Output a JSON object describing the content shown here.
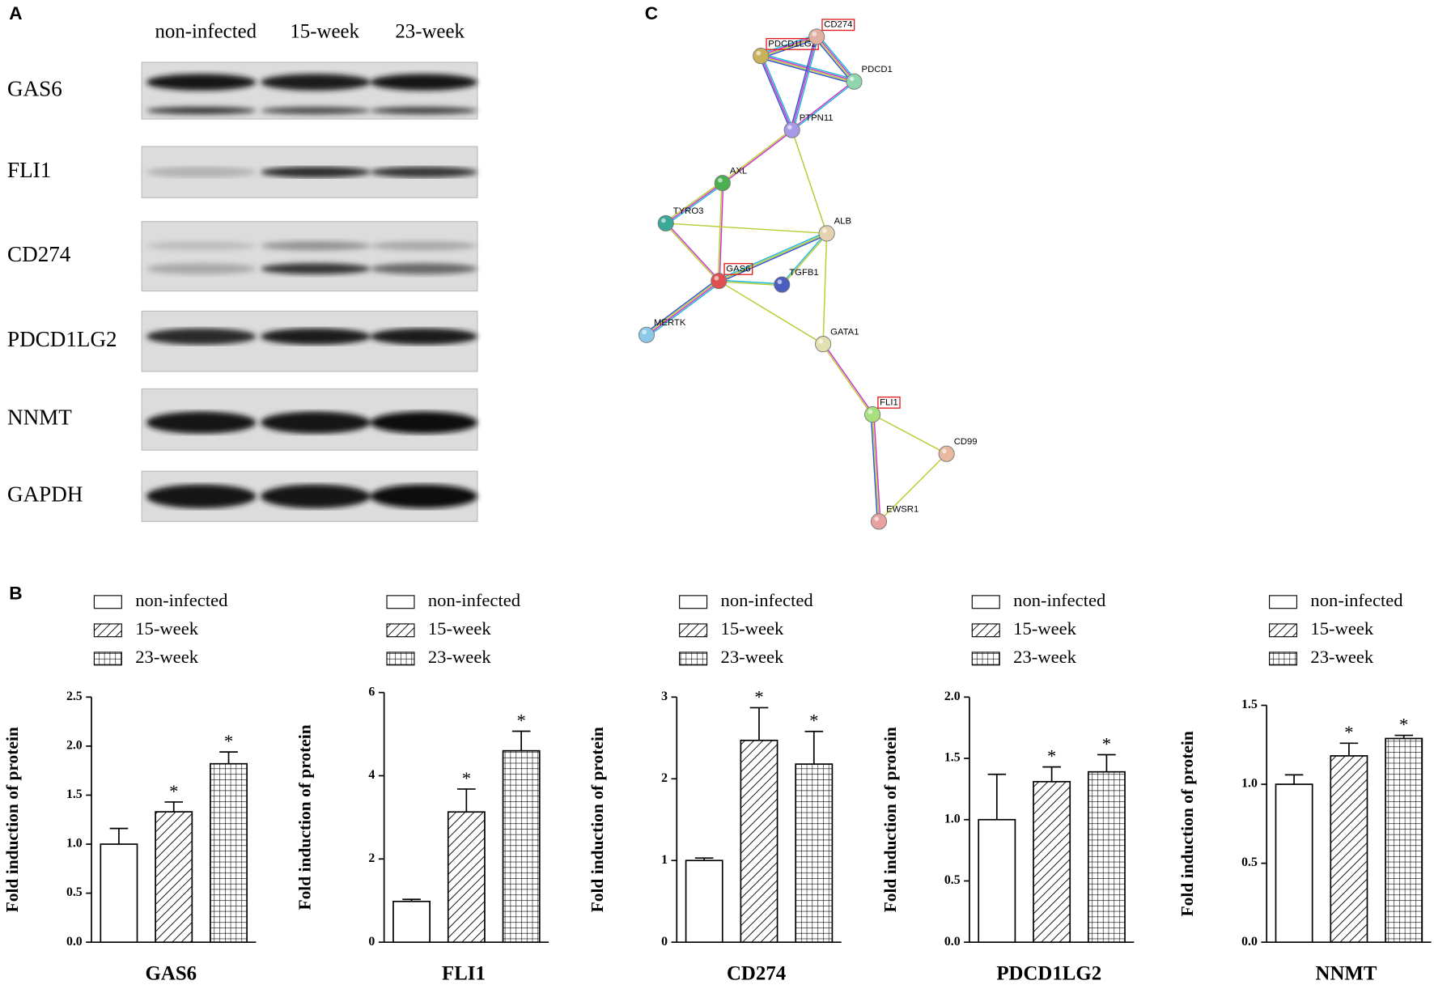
{
  "blot": {
    "panel": "A",
    "lanes": [
      "non-infected",
      "15-week",
      "23-week"
    ],
    "rows": [
      "GAS6",
      "FLI1",
      "CD274",
      "PDCD1LG2",
      "NNMT",
      "GAPDH"
    ]
  },
  "network": {
    "panel": "C",
    "nodes": [
      {
        "label": "PDCD1LG2",
        "boxed": true
      },
      {
        "label": "CD274",
        "boxed": true
      },
      {
        "label": "PDCD1",
        "boxed": false
      },
      {
        "label": "PTPN11",
        "boxed": false
      },
      {
        "label": "AXL",
        "boxed": false
      },
      {
        "label": "TYRO3",
        "boxed": false
      },
      {
        "label": "ALB",
        "boxed": false
      },
      {
        "label": "GAS6",
        "boxed": true
      },
      {
        "label": "TGFB1",
        "boxed": false
      },
      {
        "label": "MERTK",
        "boxed": false
      },
      {
        "label": "GATA1",
        "boxed": false
      },
      {
        "label": "FLI1",
        "boxed": true
      },
      {
        "label": "CD99",
        "boxed": false
      },
      {
        "label": "EWSR1",
        "boxed": false
      }
    ]
  },
  "panel_b": "B",
  "chart_data": [
    {
      "type": "bar",
      "title": "GAS6",
      "ylabel": "Fold induction of protein",
      "ylim": [
        0,
        2.5
      ],
      "yticks": [
        {
          "value": 0,
          "label": "0.0"
        },
        0.5,
        {
          "value": 1,
          "label": "1.0"
        },
        1.5,
        {
          "value": 2,
          "label": "2.0"
        },
        2.5
      ],
      "series": [
        {
          "name": "non-infected",
          "values": [
            1.0
          ],
          "errors": [
            0.16
          ]
        },
        {
          "name": "15-week",
          "values": [
            1.33
          ],
          "errors": [
            0.1
          ],
          "label": "*"
        },
        {
          "name": "23-week",
          "values": [
            1.82
          ],
          "errors": [
            0.12
          ],
          "label": "*"
        }
      ]
    },
    {
      "type": "bar",
      "title": "FLI1",
      "ylabel": "Fold induction of protein",
      "ylim": [
        0,
        6
      ],
      "yticks": [
        0,
        2,
        4,
        6
      ],
      "series": [
        {
          "name": "non-infected",
          "values": [
            0.98
          ],
          "errors": [
            0.05
          ]
        },
        {
          "name": "15-week",
          "values": [
            3.13
          ],
          "errors": [
            0.55
          ],
          "label": "*"
        },
        {
          "name": "23-week",
          "values": [
            4.6
          ],
          "errors": [
            0.47
          ],
          "label": "*"
        }
      ]
    },
    {
      "type": "bar",
      "title": "CD274",
      "ylabel": "Fold induction of protein",
      "ylim": [
        0,
        3
      ],
      "yticks": [
        0,
        1,
        2,
        3
      ],
      "series": [
        {
          "name": "non-infected",
          "values": [
            1.0
          ],
          "errors": [
            0.03
          ]
        },
        {
          "name": "15-week",
          "values": [
            2.47
          ],
          "errors": [
            0.4
          ],
          "label": "*"
        },
        {
          "name": "23-week",
          "values": [
            2.18
          ],
          "errors": [
            0.4
          ],
          "label": "*"
        }
      ]
    },
    {
      "type": "bar",
      "title": "PDCD1LG2",
      "ylabel": "Fold induction of protein",
      "ylim": [
        0,
        2
      ],
      "yticks": [
        {
          "value": 0,
          "label": "0.0"
        },
        0.5,
        {
          "value": 1,
          "label": "1.0"
        },
        1.5,
        {
          "value": 2,
          "label": "2.0"
        }
      ],
      "series": [
        {
          "name": "non-infected",
          "values": [
            1.0
          ],
          "errors": [
            0.37
          ]
        },
        {
          "name": "15-week",
          "values": [
            1.31
          ],
          "errors": [
            0.12
          ],
          "label": "*"
        },
        {
          "name": "23-week",
          "values": [
            1.39
          ],
          "errors": [
            0.14
          ],
          "label": "*"
        }
      ]
    },
    {
      "type": "bar",
      "title": "NNMT",
      "ylabel": "Fold induction of protein",
      "ylim": [
        0,
        1.5
      ],
      "yticks": [
        {
          "value": 0,
          "label": "0.0"
        },
        0.5,
        {
          "value": 1,
          "label": "1.0"
        },
        1.5
      ],
      "series": [
        {
          "name": "non-infected",
          "values": [
            1.0
          ],
          "errors": [
            0.06
          ]
        },
        {
          "name": "15-week",
          "values": [
            1.18
          ],
          "errors": [
            0.08
          ],
          "label": "*"
        },
        {
          "name": "23-week",
          "values": [
            1.29
          ],
          "errors": [
            0.02
          ],
          "label": "*"
        }
      ]
    }
  ]
}
